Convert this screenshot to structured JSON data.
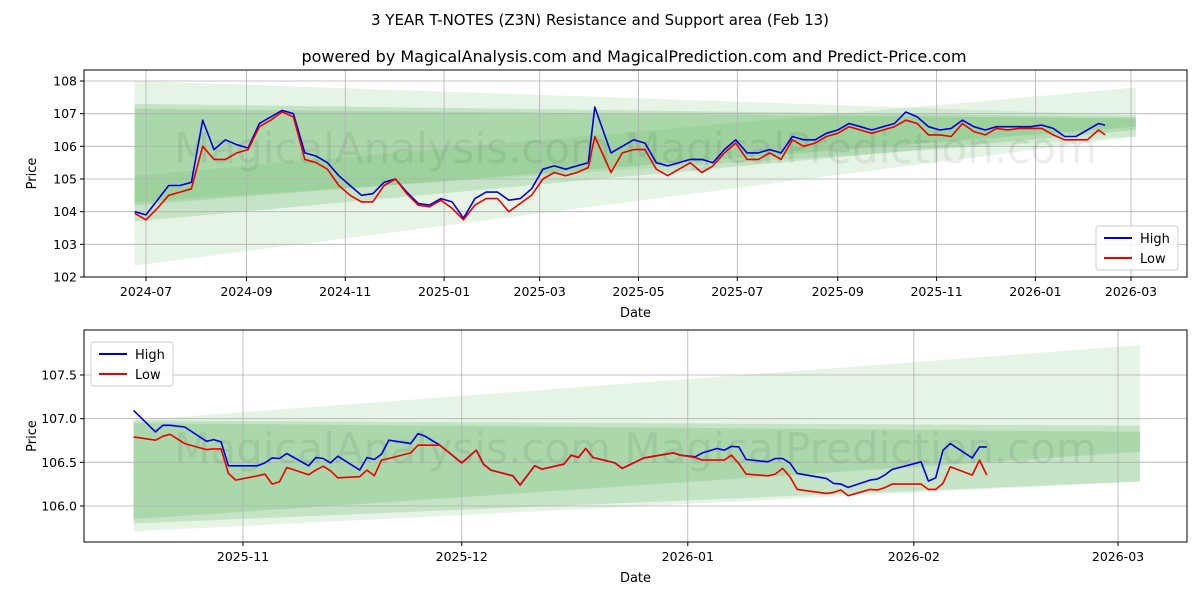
{
  "title": "3 YEAR T-NOTES (Z3N) Resistance and Support area (Feb 13)",
  "subtitle": "powered by MagicalAnalysis.com and MagicalPrediction.com and Predict-Price.com",
  "watermark": "MagicalAnalysis.com    MagicalPrediction.com",
  "colors": {
    "high": "#0000dd",
    "low": "#ee0000",
    "band": "#4caf50"
  },
  "chart_data": [
    {
      "type": "line",
      "xlabel": "Date",
      "ylabel": "Price",
      "ylim": [
        102,
        108.35
      ],
      "yticks": [
        "102",
        "103",
        "104",
        "105",
        "106",
        "107",
        "108"
      ],
      "xticks": [
        "2024-07",
        "2024-09",
        "2024-11",
        "2025-01",
        "2025-03",
        "2025-05",
        "2025-07",
        "2025-09",
        "2025-11",
        "2026-01",
        "2026-03"
      ],
      "legend": {
        "position": "lower-right",
        "entries": [
          "High",
          "Low"
        ]
      },
      "grid": true,
      "bands": [
        {
          "start": "2024-06-24",
          "end": "2026-03-04",
          "from": [
            108.0,
            102.35
          ],
          "to": [
            106.95,
            106.3
          ],
          "opacity": 0.14
        },
        {
          "start": "2024-06-24",
          "end": "2026-03-04",
          "from": [
            107.3,
            103.7
          ],
          "to": [
            106.9,
            106.5
          ],
          "opacity": 0.22
        },
        {
          "start": "2024-06-24",
          "end": "2026-03-04",
          "from": [
            107.15,
            104.2
          ],
          "to": [
            106.85,
            106.6
          ],
          "opacity": 0.22
        },
        {
          "start": "2024-06-24",
          "end": "2026-03-04",
          "from": [
            105.1,
            104.3
          ],
          "to": [
            107.8,
            106.3
          ],
          "opacity": 0.14
        }
      ],
      "series": {
        "dates": [
          "2024-06-24",
          "2024-07-01",
          "2024-07-08",
          "2024-07-15",
          "2024-07-22",
          "2024-07-29",
          "2024-08-05",
          "2024-08-12",
          "2024-08-19",
          "2024-08-26",
          "2024-09-02",
          "2024-09-09",
          "2024-09-16",
          "2024-09-23",
          "2024-09-30",
          "2024-10-07",
          "2024-10-14",
          "2024-10-21",
          "2024-10-28",
          "2024-11-04",
          "2024-11-11",
          "2024-11-18",
          "2024-11-25",
          "2024-12-02",
          "2024-12-09",
          "2024-12-16",
          "2024-12-23",
          "2024-12-30",
          "2025-01-06",
          "2025-01-13",
          "2025-01-20",
          "2025-01-27",
          "2025-02-03",
          "2025-02-10",
          "2025-02-17",
          "2025-02-24",
          "2025-03-03",
          "2025-03-10",
          "2025-03-17",
          "2025-03-24",
          "2025-03-31",
          "2025-04-04",
          "2025-04-14",
          "2025-04-21",
          "2025-04-28",
          "2025-05-05",
          "2025-05-12",
          "2025-05-19",
          "2025-05-26",
          "2025-06-02",
          "2025-06-09",
          "2025-06-16",
          "2025-06-23",
          "2025-06-30",
          "2025-07-07",
          "2025-07-14",
          "2025-07-21",
          "2025-07-28",
          "2025-08-04",
          "2025-08-11",
          "2025-08-18",
          "2025-08-25",
          "2025-09-01",
          "2025-09-08",
          "2025-09-15",
          "2025-09-22",
          "2025-09-29",
          "2025-10-06",
          "2025-10-13",
          "2025-10-20",
          "2025-10-27",
          "2025-11-03",
          "2025-11-10",
          "2025-11-17",
          "2025-11-24",
          "2025-12-01",
          "2025-12-08",
          "2025-12-15",
          "2025-12-22",
          "2025-12-29",
          "2026-01-05",
          "2026-01-12",
          "2026-01-19",
          "2026-01-26",
          "2026-02-02",
          "2026-02-09",
          "2026-02-13"
        ],
        "high": [
          104.0,
          103.9,
          104.35,
          104.8,
          104.8,
          104.9,
          106.8,
          105.9,
          106.2,
          106.05,
          105.95,
          106.7,
          106.9,
          107.1,
          107.0,
          105.8,
          105.7,
          105.5,
          105.1,
          104.8,
          104.5,
          104.55,
          104.9,
          105.0,
          104.6,
          104.25,
          104.2,
          104.4,
          104.3,
          103.8,
          104.4,
          104.6,
          104.6,
          104.35,
          104.4,
          104.7,
          105.3,
          105.4,
          105.3,
          105.4,
          105.5,
          107.2,
          105.8,
          106.0,
          106.2,
          106.1,
          105.5,
          105.4,
          105.5,
          105.6,
          105.6,
          105.5,
          105.9,
          106.2,
          105.8,
          105.8,
          105.9,
          105.8,
          106.3,
          106.2,
          106.2,
          106.4,
          106.5,
          106.7,
          106.6,
          106.5,
          106.6,
          106.7,
          107.05,
          106.9,
          106.6,
          106.5,
          106.55,
          106.8,
          106.6,
          106.5,
          106.6,
          106.6,
          106.6,
          106.6,
          106.65,
          106.55,
          106.3,
          106.3,
          106.5,
          106.7,
          106.65
        ],
        "low": [
          103.95,
          103.75,
          104.1,
          104.5,
          104.6,
          104.7,
          106.0,
          105.6,
          105.6,
          105.8,
          105.9,
          106.6,
          106.8,
          107.05,
          106.9,
          105.6,
          105.5,
          105.3,
          104.8,
          104.5,
          104.3,
          104.3,
          104.8,
          105.0,
          104.55,
          104.2,
          104.15,
          104.35,
          104.1,
          103.75,
          104.2,
          104.4,
          104.4,
          104.0,
          104.25,
          104.5,
          105.0,
          105.2,
          105.1,
          105.2,
          105.35,
          106.3,
          105.2,
          105.8,
          105.9,
          105.9,
          105.3,
          105.1,
          105.3,
          105.5,
          105.2,
          105.4,
          105.8,
          106.1,
          105.6,
          105.6,
          105.8,
          105.6,
          106.2,
          106.0,
          106.1,
          106.3,
          106.4,
          106.6,
          106.5,
          106.4,
          106.5,
          106.6,
          106.8,
          106.7,
          106.35,
          106.35,
          106.3,
          106.7,
          106.45,
          106.35,
          106.55,
          106.5,
          106.55,
          106.55,
          106.55,
          106.35,
          106.2,
          106.2,
          106.2,
          106.5,
          106.35
        ]
      }
    },
    {
      "type": "line",
      "xlabel": "Date",
      "ylabel": "Price",
      "ylim": [
        105.6,
        107.93
      ],
      "yticks": [
        "106.0",
        "106.5",
        "107.0",
        "107.5"
      ],
      "xticks": [
        "2025-11",
        "2025-12",
        "2026-01",
        "2026-02",
        "2026-03"
      ],
      "legend": {
        "position": "upper-left",
        "entries": [
          "High",
          "Low"
        ]
      },
      "grid": true,
      "bands": [
        {
          "start": "2025-10-17",
          "end": "2026-03-04",
          "from": [
            106.98,
            105.71
          ],
          "to": [
            107.84,
            106.28
          ],
          "opacity": 0.14
        },
        {
          "start": "2025-10-17",
          "end": "2026-03-04",
          "from": [
            106.98,
            105.8
          ],
          "to": [
            106.92,
            106.28
          ],
          "opacity": 0.22
        },
        {
          "start": "2025-10-17",
          "end": "2026-03-04",
          "from": [
            106.95,
            105.85
          ],
          "to": [
            106.85,
            106.62
          ],
          "opacity": 0.22
        }
      ],
      "series": {
        "dates": [
          "2025-10-17",
          "2025-10-20",
          "2025-10-21",
          "2025-10-22",
          "2025-10-24",
          "2025-10-27",
          "2025-10-28",
          "2025-10-29",
          "2025-10-30",
          "2025-10-31",
          "2025-11-03",
          "2025-11-04",
          "2025-11-05",
          "2025-11-06",
          "2025-11-07",
          "2025-11-10",
          "2025-11-11",
          "2025-11-12",
          "2025-11-13",
          "2025-11-14",
          "2025-11-17",
          "2025-11-18",
          "2025-11-19",
          "2025-11-20",
          "2025-11-21",
          "2025-11-24",
          "2025-11-25",
          "2025-11-26",
          "2025-11-28",
          "2025-12-01",
          "2025-12-03",
          "2025-12-04",
          "2025-12-05",
          "2025-12-08",
          "2025-12-09",
          "2025-12-11",
          "2025-12-12",
          "2025-12-15",
          "2025-12-16",
          "2025-12-17",
          "2025-12-18",
          "2025-12-19",
          "2025-12-22",
          "2025-12-23",
          "2025-12-26",
          "2025-12-30",
          "2025-12-31",
          "2026-01-02",
          "2026-01-03",
          "2026-01-05",
          "2026-01-06",
          "2026-01-07",
          "2026-01-08",
          "2026-01-09",
          "2026-01-12",
          "2026-01-13",
          "2026-01-14",
          "2026-01-15",
          "2026-01-16",
          "2026-01-20",
          "2026-01-21",
          "2026-01-22",
          "2026-01-23",
          "2026-01-26",
          "2026-01-27",
          "2026-01-28",
          "2026-01-29",
          "2026-02-02",
          "2026-02-03",
          "2026-02-04",
          "2026-02-05",
          "2026-02-06",
          "2026-02-09",
          "2026-02-10",
          "2026-02-11"
        ],
        "high": [
          107.095,
          106.848,
          106.924,
          106.924,
          106.905,
          106.741,
          106.76,
          106.734,
          106.46,
          106.46,
          106.46,
          106.494,
          106.551,
          106.544,
          106.601,
          106.46,
          106.555,
          106.544,
          106.494,
          106.57,
          106.411,
          106.555,
          106.532,
          106.593,
          106.753,
          106.715,
          106.829,
          106.798,
          106.696,
          106.494,
          106.639,
          106.479,
          106.411,
          106.346,
          106.24,
          106.46,
          106.422,
          106.479,
          106.582,
          106.555,
          106.658,
          106.555,
          106.494,
          106.43,
          106.551,
          106.608,
          106.582,
          106.563,
          106.608,
          106.658,
          106.639,
          106.684,
          106.677,
          106.532,
          106.506,
          106.544,
          106.544,
          106.494,
          106.373,
          106.316,
          106.259,
          106.251,
          106.213,
          106.297,
          106.308,
          106.354,
          106.418,
          106.506,
          106.285,
          106.323,
          106.639,
          106.715,
          106.551,
          106.677,
          106.677
        ],
        "low": [
          106.791,
          106.753,
          106.798,
          106.821,
          106.715,
          106.646,
          106.654,
          106.654,
          106.373,
          106.297,
          106.346,
          106.365,
          106.251,
          106.278,
          106.441,
          106.357,
          106.411,
          106.456,
          106.403,
          106.323,
          106.335,
          106.411,
          106.346,
          106.525,
          106.544,
          106.608,
          106.696,
          106.696,
          106.696,
          106.494,
          106.639,
          106.479,
          106.411,
          106.346,
          106.24,
          106.46,
          106.422,
          106.479,
          106.582,
          106.555,
          106.658,
          106.555,
          106.494,
          106.43,
          106.551,
          106.608,
          106.582,
          106.555,
          106.525,
          106.525,
          106.525,
          106.582,
          106.487,
          106.365,
          106.346,
          106.365,
          106.43,
          106.335,
          106.19,
          106.144,
          106.156,
          106.183,
          106.118,
          106.19,
          106.183,
          106.209,
          106.251,
          106.251,
          106.19,
          106.19,
          106.259,
          106.449,
          106.354,
          106.525,
          106.354
        ]
      }
    }
  ]
}
